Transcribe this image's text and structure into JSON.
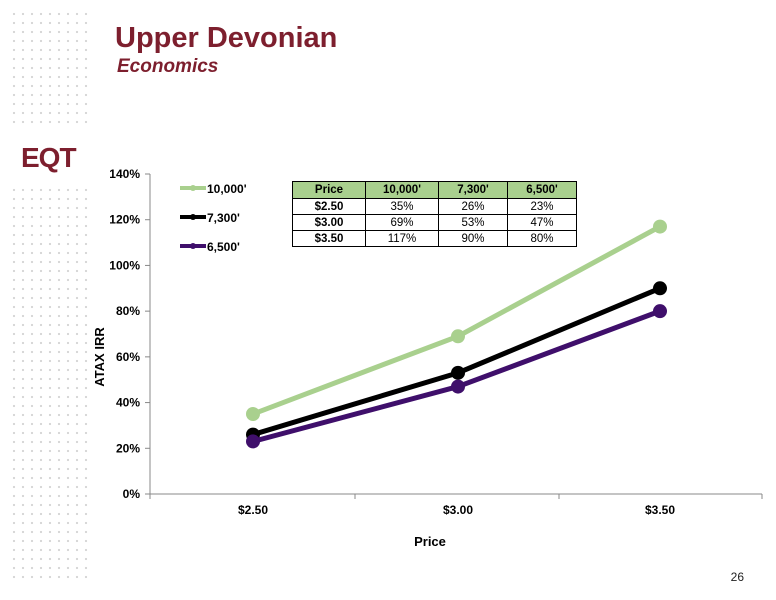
{
  "slide": {
    "title": "Upper Devonian",
    "subtitle": "Economics",
    "page_number": "26",
    "logo_text": "EQT"
  },
  "colors": {
    "title": "#7d1f2e",
    "series_10000": "#a9d08e",
    "series_7300": "#000000",
    "series_6500": "#3f0f6b",
    "table_header": "#a9d08e"
  },
  "table": {
    "headers": [
      "Price",
      "10,000'",
      "7,300'",
      "6,500'"
    ],
    "rows": [
      [
        "$2.50",
        "35%",
        "26%",
        "23%"
      ],
      [
        "$3.00",
        "69%",
        "53%",
        "47%"
      ],
      [
        "$3.50",
        "117%",
        "90%",
        "80%"
      ]
    ]
  },
  "chart_data": {
    "type": "line",
    "categories": [
      "$2.50",
      "$3.00",
      "$3.50"
    ],
    "series": [
      {
        "name": "10,000'",
        "values": [
          35,
          69,
          117
        ],
        "color": "#a9d08e"
      },
      {
        "name": "7,300'",
        "values": [
          26,
          53,
          90
        ],
        "color": "#000000"
      },
      {
        "name": "6,500'",
        "values": [
          23,
          47,
          80
        ],
        "color": "#3f0f6b"
      }
    ],
    "xlabel": "Price",
    "ylabel": "ATAX IRR",
    "ylim": [
      0,
      140
    ],
    "yticks": [
      "0%",
      "20%",
      "40%",
      "60%",
      "80%",
      "100%",
      "120%",
      "140%"
    ],
    "grid": false,
    "legend_position": "top-left"
  }
}
